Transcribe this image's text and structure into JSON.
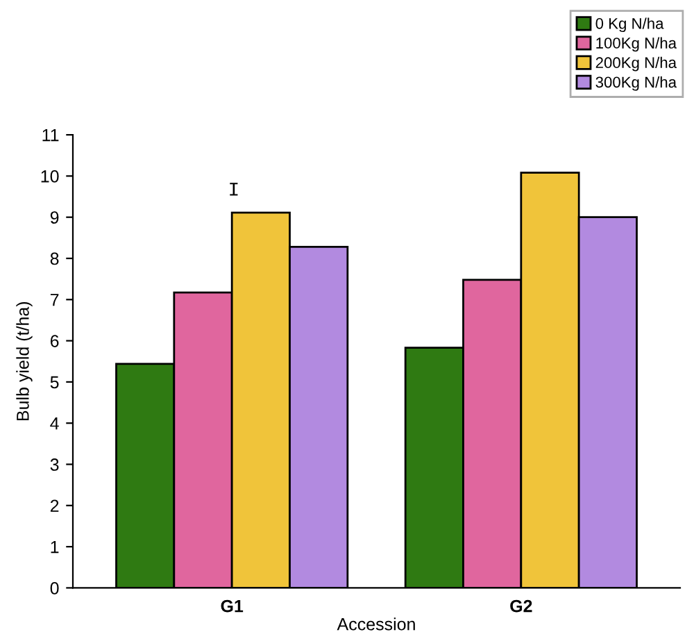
{
  "chart_data": {
    "type": "bar",
    "xlabel": "Accession",
    "ylabel": "Bulb yield (t/ha)",
    "categories": [
      "G1",
      "G2"
    ],
    "series": [
      {
        "name": "0 Kg N/ha",
        "color": "#2f7a12",
        "values": [
          5.44,
          5.83
        ]
      },
      {
        "name": "100Kg N/ha",
        "color": "#e0669e",
        "values": [
          7.17,
          7.48
        ]
      },
      {
        "name": "200Kg N/ha",
        "color": "#f0c43a",
        "values": [
          9.11,
          10.08
        ]
      },
      {
        "name": "300Kg N/ha",
        "color": "#b28ae0",
        "values": [
          8.28,
          9.0
        ]
      }
    ],
    "ylim": [
      0,
      11
    ],
    "yticks": [
      0,
      1,
      2,
      3,
      4,
      5,
      6,
      7,
      8,
      9,
      10,
      11
    ],
    "annotations": [
      "I"
    ],
    "grid": false,
    "legend": "top right"
  }
}
